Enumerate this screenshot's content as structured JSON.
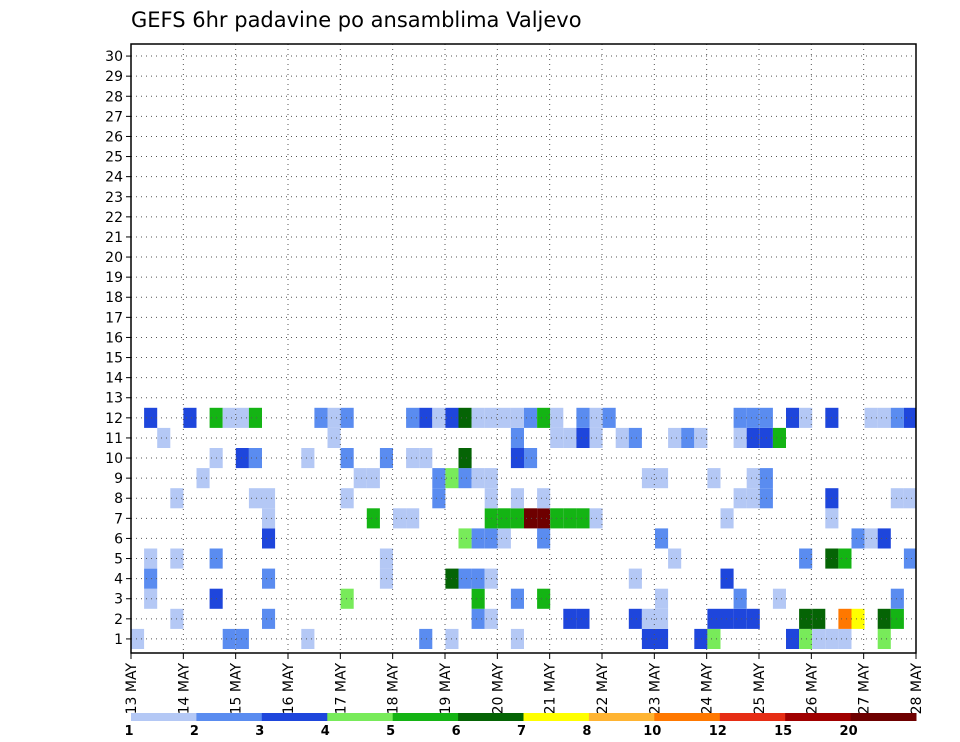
{
  "chart_data": {
    "type": "heatmap",
    "title": "GEFS 6hr padavine po ansamblima Valjevo",
    "xlabel": "",
    "ylabel": "",
    "x_tick_labels": [
      "13 MAY",
      "14 MAY",
      "15 MAY",
      "16 MAY",
      "17 MAY",
      "18 MAY",
      "19 MAY",
      "20 MAY",
      "21 MAY",
      "22 MAY",
      "23 MAY",
      "24 MAY",
      "25 MAY",
      "26 MAY",
      "27 MAY",
      "28 MAY"
    ],
    "y_tick_labels": [
      "1",
      "2",
      "3",
      "4",
      "5",
      "6",
      "7",
      "8",
      "9",
      "10",
      "11",
      "12",
      "13",
      "14",
      "15",
      "16",
      "17",
      "18",
      "19",
      "20",
      "21",
      "22",
      "23",
      "24",
      "25",
      "26",
      "27",
      "28",
      "29",
      "30"
    ],
    "xlim": [
      0,
      60
    ],
    "ylim": [
      0,
      30
    ],
    "grid": true,
    "colorbar_levels": [
      "1",
      "2",
      "3",
      "4",
      "5",
      "6",
      "7",
      "8",
      "10",
      "12",
      "15",
      "20"
    ],
    "colors": [
      "#b4c8f5",
      "#5a8cf0",
      "#1e46dc",
      "#78eb5a",
      "#14b414",
      "#056405",
      "#ffff00",
      "#ffb432",
      "#ff7800",
      "#e62d14",
      "#a00000",
      "#6e0000"
    ],
    "cells": [
      [
        0,
        0,
        0
      ],
      [
        7,
        0,
        1
      ],
      [
        8,
        0,
        1
      ],
      [
        13,
        0,
        0
      ],
      [
        22,
        0,
        1
      ],
      [
        24,
        0,
        0
      ],
      [
        29,
        0,
        0
      ],
      [
        39,
        0,
        2
      ],
      [
        40,
        0,
        2
      ],
      [
        43,
        0,
        2
      ],
      [
        44,
        0,
        3
      ],
      [
        50,
        0,
        2
      ],
      [
        51,
        0,
        3
      ],
      [
        52,
        0,
        0
      ],
      [
        53,
        0,
        0
      ],
      [
        54,
        0,
        0
      ],
      [
        57,
        0,
        3
      ],
      [
        60,
        0,
        0
      ],
      [
        3,
        1,
        0
      ],
      [
        10,
        1,
        1
      ],
      [
        26,
        1,
        1
      ],
      [
        27,
        1,
        0
      ],
      [
        33,
        1,
        2
      ],
      [
        34,
        1,
        2
      ],
      [
        38,
        1,
        2
      ],
      [
        39,
        1,
        0
      ],
      [
        40,
        1,
        0
      ],
      [
        44,
        1,
        2
      ],
      [
        45,
        1,
        2
      ],
      [
        46,
        1,
        2
      ],
      [
        47,
        1,
        2
      ],
      [
        51,
        1,
        5
      ],
      [
        52,
        1,
        5
      ],
      [
        54,
        1,
        8
      ],
      [
        55,
        1,
        6
      ],
      [
        57,
        1,
        5
      ],
      [
        58,
        1,
        4
      ],
      [
        1,
        2,
        0
      ],
      [
        6,
        2,
        2
      ],
      [
        16,
        2,
        3
      ],
      [
        26,
        2,
        4
      ],
      [
        29,
        2,
        1
      ],
      [
        31,
        2,
        4
      ],
      [
        40,
        2,
        0
      ],
      [
        46,
        2,
        1
      ],
      [
        49,
        2,
        0
      ],
      [
        58,
        2,
        1
      ],
      [
        1,
        3,
        1
      ],
      [
        10,
        3,
        1
      ],
      [
        19,
        3,
        0
      ],
      [
        24,
        3,
        5
      ],
      [
        25,
        3,
        1
      ],
      [
        26,
        3,
        1
      ],
      [
        27,
        3,
        0
      ],
      [
        38,
        3,
        0
      ],
      [
        45,
        3,
        2
      ],
      [
        1,
        4,
        0
      ],
      [
        3,
        4,
        0
      ],
      [
        6,
        4,
        1
      ],
      [
        19,
        4,
        0
      ],
      [
        41,
        4,
        0
      ],
      [
        51,
        4,
        1
      ],
      [
        53,
        4,
        5
      ],
      [
        54,
        4,
        4
      ],
      [
        59,
        4,
        1
      ],
      [
        10,
        5,
        2
      ],
      [
        25,
        5,
        3
      ],
      [
        26,
        5,
        1
      ],
      [
        27,
        5,
        1
      ],
      [
        28,
        5,
        0
      ],
      [
        31,
        5,
        1
      ],
      [
        40,
        5,
        1
      ],
      [
        55,
        5,
        1
      ],
      [
        56,
        5,
        0
      ],
      [
        57,
        5,
        2
      ],
      [
        10,
        6,
        0
      ],
      [
        18,
        6,
        4
      ],
      [
        20,
        6,
        0
      ],
      [
        21,
        6,
        0
      ],
      [
        27,
        6,
        4
      ],
      [
        28,
        6,
        4
      ],
      [
        29,
        6,
        4
      ],
      [
        30,
        6,
        11
      ],
      [
        31,
        6,
        11
      ],
      [
        32,
        6,
        4
      ],
      [
        33,
        6,
        4
      ],
      [
        34,
        6,
        4
      ],
      [
        35,
        6,
        0
      ],
      [
        45,
        6,
        0
      ],
      [
        53,
        6,
        0
      ],
      [
        3,
        7,
        0
      ],
      [
        9,
        7,
        0
      ],
      [
        10,
        7,
        0
      ],
      [
        16,
        7,
        0
      ],
      [
        23,
        7,
        1
      ],
      [
        27,
        7,
        0
      ],
      [
        29,
        7,
        0
      ],
      [
        31,
        7,
        0
      ],
      [
        46,
        7,
        0
      ],
      [
        47,
        7,
        0
      ],
      [
        48,
        7,
        1
      ],
      [
        53,
        7,
        2
      ],
      [
        58,
        7,
        0
      ],
      [
        59,
        7,
        0
      ],
      [
        60,
        7,
        0
      ],
      [
        66,
        7,
        3
      ],
      [
        5,
        8,
        0
      ],
      [
        17,
        8,
        0
      ],
      [
        18,
        8,
        0
      ],
      [
        23,
        8,
        1
      ],
      [
        24,
        8,
        3
      ],
      [
        25,
        8,
        1
      ],
      [
        26,
        8,
        0
      ],
      [
        27,
        8,
        0
      ],
      [
        39,
        8,
        0
      ],
      [
        40,
        8,
        0
      ],
      [
        44,
        8,
        0
      ],
      [
        47,
        8,
        0
      ],
      [
        48,
        8,
        1
      ],
      [
        6,
        9,
        0
      ],
      [
        8,
        9,
        2
      ],
      [
        9,
        9,
        1
      ],
      [
        13,
        9,
        0
      ],
      [
        16,
        9,
        1
      ],
      [
        19,
        9,
        1
      ],
      [
        21,
        9,
        0
      ],
      [
        22,
        9,
        0
      ],
      [
        25,
        9,
        5
      ],
      [
        29,
        9,
        2
      ],
      [
        30,
        9,
        1
      ],
      [
        2,
        10,
        0
      ],
      [
        15,
        10,
        0
      ],
      [
        29,
        10,
        1
      ],
      [
        32,
        10,
        0
      ],
      [
        33,
        10,
        0
      ],
      [
        34,
        10,
        2
      ],
      [
        35,
        10,
        0
      ],
      [
        37,
        10,
        0
      ],
      [
        38,
        10,
        1
      ],
      [
        41,
        10,
        0
      ],
      [
        42,
        10,
        1
      ],
      [
        43,
        10,
        0
      ],
      [
        46,
        10,
        0
      ],
      [
        47,
        10,
        2
      ],
      [
        48,
        10,
        2
      ],
      [
        49,
        10,
        4
      ],
      [
        1,
        11,
        2
      ],
      [
        4,
        11,
        2
      ],
      [
        6,
        11,
        4
      ],
      [
        7,
        11,
        0
      ],
      [
        8,
        11,
        0
      ],
      [
        9,
        11,
        4
      ],
      [
        14,
        11,
        1
      ],
      [
        15,
        11,
        0
      ],
      [
        16,
        11,
        1
      ],
      [
        21,
        11,
        1
      ],
      [
        22,
        11,
        2
      ],
      [
        23,
        11,
        0
      ],
      [
        24,
        11,
        2
      ],
      [
        25,
        11,
        5
      ],
      [
        26,
        11,
        0
      ],
      [
        27,
        11,
        0
      ],
      [
        28,
        11,
        0
      ],
      [
        29,
        11,
        0
      ],
      [
        30,
        11,
        1
      ],
      [
        31,
        11,
        4
      ],
      [
        32,
        11,
        0
      ],
      [
        34,
        11,
        1
      ],
      [
        35,
        11,
        0
      ],
      [
        36,
        11,
        1
      ],
      [
        46,
        11,
        1
      ],
      [
        47,
        11,
        1
      ],
      [
        48,
        11,
        1
      ],
      [
        50,
        11,
        2
      ],
      [
        51,
        11,
        0
      ],
      [
        53,
        11,
        2
      ],
      [
        56,
        11,
        0
      ],
      [
        57,
        11,
        0
      ],
      [
        58,
        11,
        1
      ],
      [
        59,
        11,
        2
      ],
      [
        60,
        11,
        2
      ],
      [
        61,
        11,
        0
      ],
      [
        62,
        11,
        0
      ],
      [
        63,
        11,
        1
      ],
      [
        64,
        11,
        0
      ],
      [
        65,
        11,
        1
      ],
      [
        66,
        11,
        2
      ],
      [
        67,
        11,
        0
      ]
    ],
    "cell_spans": "cells are [x_step_6h, y_member-1, color_index]"
  }
}
